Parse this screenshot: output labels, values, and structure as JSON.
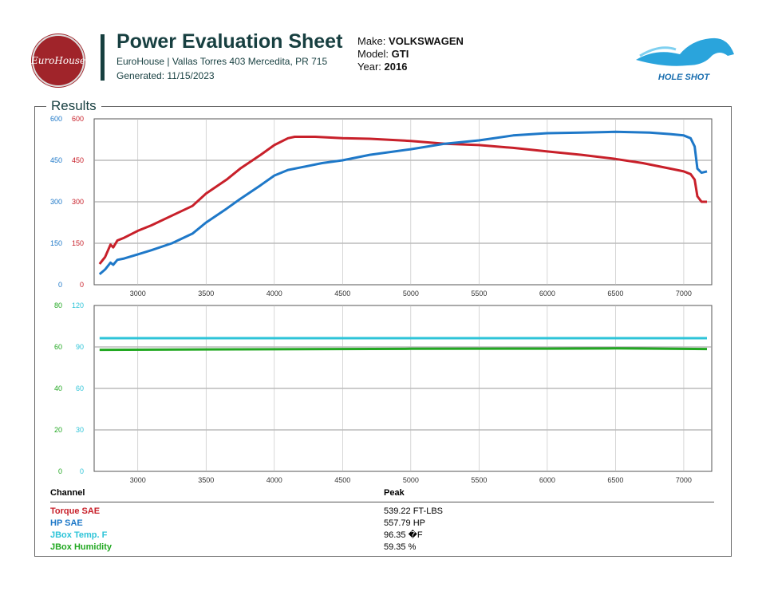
{
  "header": {
    "title": "Power Evaluation Sheet",
    "address": "EuroHouse | Vallas Torres 403 Mercedita, PR 715",
    "generated": "Generated: 11/15/2023",
    "logo_text": "EuroHouse",
    "brand_text": "HOLE SHOT",
    "make_label": "Make:",
    "make": "VOLKSWAGEN",
    "model_label": "Model:",
    "model": "GTI",
    "year_label": "Year:",
    "year": "2016"
  },
  "section_title": "Results",
  "colors": {
    "torque": "#c8202a",
    "hp": "#1e78c8",
    "temp": "#2ec4d8",
    "humidity": "#22a822"
  },
  "chart_data": [
    {
      "type": "line",
      "xlim": [
        2680,
        7205
      ],
      "xticks": [
        3000,
        3500,
        4000,
        4500,
        5000,
        5500,
        6000,
        6500,
        7000
      ],
      "grid": true,
      "y_axes": [
        {
          "series": "HP SAE",
          "ticks": [
            0,
            150,
            300,
            450,
            600
          ],
          "ylim": [
            0,
            600
          ]
        },
        {
          "series": "Torque SAE",
          "ticks": [
            0,
            150,
            300,
            450,
            600
          ],
          "ylim": [
            0,
            600
          ]
        }
      ],
      "series": [
        {
          "name": "Torque SAE",
          "x": [
            2720,
            2760,
            2800,
            2820,
            2850,
            2900,
            3000,
            3100,
            3250,
            3400,
            3500,
            3650,
            3750,
            3900,
            4000,
            4100,
            4150,
            4300,
            4500,
            4700,
            5000,
            5250,
            5500,
            5750,
            6000,
            6250,
            6500,
            6700,
            6900,
            7000,
            7050,
            7080,
            7100,
            7130,
            7170
          ],
          "y": [
            75,
            100,
            145,
            135,
            160,
            170,
            195,
            215,
            250,
            285,
            330,
            380,
            420,
            470,
            505,
            530,
            535,
            535,
            530,
            528,
            520,
            510,
            505,
            495,
            482,
            470,
            455,
            440,
            420,
            410,
            400,
            380,
            320,
            300,
            300
          ]
        },
        {
          "name": "HP SAE",
          "x": [
            2720,
            2760,
            2800,
            2820,
            2850,
            2900,
            3000,
            3100,
            3250,
            3400,
            3500,
            3650,
            3750,
            3900,
            4000,
            4100,
            4200,
            4350,
            4500,
            4700,
            5000,
            5250,
            5500,
            5750,
            6000,
            6250,
            6500,
            6750,
            6900,
            7000,
            7050,
            7080,
            7100,
            7130,
            7170
          ],
          "y": [
            38,
            55,
            80,
            72,
            90,
            95,
            110,
            125,
            150,
            185,
            225,
            275,
            310,
            360,
            395,
            415,
            425,
            440,
            450,
            470,
            490,
            510,
            522,
            540,
            548,
            550,
            553,
            550,
            545,
            540,
            530,
            500,
            420,
            405,
            410
          ]
        }
      ]
    },
    {
      "type": "line",
      "xlim": [
        2680,
        7205
      ],
      "xticks": [
        3000,
        3500,
        4000,
        4500,
        5000,
        5500,
        6000,
        6500,
        7000
      ],
      "grid": true,
      "y_axes": [
        {
          "series": "JBox Humidity",
          "ticks": [
            0,
            20,
            40,
            60,
            80
          ],
          "ylim": [
            0,
            80
          ]
        },
        {
          "series": "JBox Temp. F",
          "ticks": [
            0,
            30,
            60,
            90,
            120
          ],
          "ylim": [
            0,
            120
          ]
        }
      ],
      "series": [
        {
          "name": "JBox Temp. F",
          "axis": 1,
          "x": [
            2720,
            7170
          ],
          "y": [
            96.35,
            96.35
          ]
        },
        {
          "name": "JBox Humidity",
          "axis": 0,
          "x": [
            2720,
            4000,
            5000,
            6000,
            6500,
            7170
          ],
          "y": [
            58.6,
            58.9,
            59.1,
            59.2,
            59.3,
            59.0
          ]
        }
      ]
    }
  ],
  "table": {
    "headers": [
      "Channel",
      "Peak"
    ],
    "rows": [
      {
        "channel": "Torque SAE",
        "peak": "539.22 FT-LBS",
        "color": "#c8202a"
      },
      {
        "channel": "HP SAE",
        "peak": "557.79 HP",
        "color": "#1e78c8"
      },
      {
        "channel": "JBox Temp. F",
        "peak": "96.35 �F",
        "color": "#2ec4d8"
      },
      {
        "channel": "JBox Humidity",
        "peak": "59.35 %",
        "color": "#22a822"
      }
    ]
  }
}
